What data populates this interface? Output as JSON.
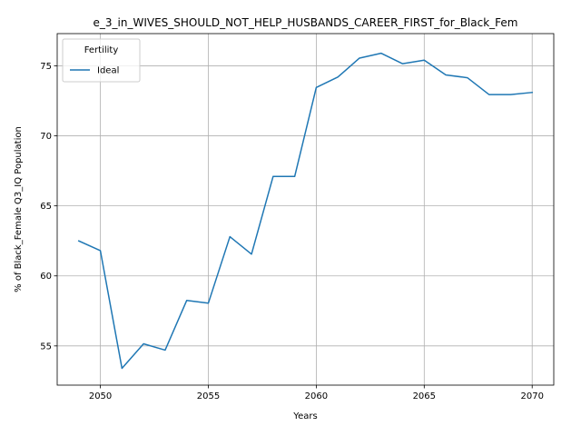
{
  "chart_data": {
    "type": "line",
    "title": "e_3_in_WIVES_SHOULD_NOT_HELP_HUSBANDS_CAREER_FIRST_for_Black_Fem",
    "xlabel": "Years",
    "ylabel": "% of Black_Female Q3_IQ Population",
    "xlim": [
      2048,
      2071
    ],
    "ylim": [
      52.2,
      77.3
    ],
    "xticks": [
      2050,
      2055,
      2060,
      2065,
      2070
    ],
    "yticks": [
      55,
      60,
      65,
      70,
      75
    ],
    "grid": true,
    "legend": {
      "title": "Fertility",
      "placement": "top-left"
    },
    "series": [
      {
        "name": "Ideal",
        "color": "#1f77b4",
        "x": [
          2049,
          2050,
          2051,
          2052,
          2053,
          2054,
          2055,
          2056,
          2057,
          2058,
          2059,
          2060,
          2061,
          2062,
          2063,
          2064,
          2065,
          2066,
          2067,
          2068,
          2069,
          2070
        ],
        "y": [
          62.5,
          61.8,
          53.4,
          55.15,
          54.7,
          58.25,
          58.05,
          62.8,
          61.55,
          67.1,
          67.1,
          73.45,
          74.2,
          75.55,
          75.9,
          75.15,
          75.4,
          74.35,
          74.15,
          72.95,
          72.95,
          73.1
        ]
      }
    ]
  }
}
